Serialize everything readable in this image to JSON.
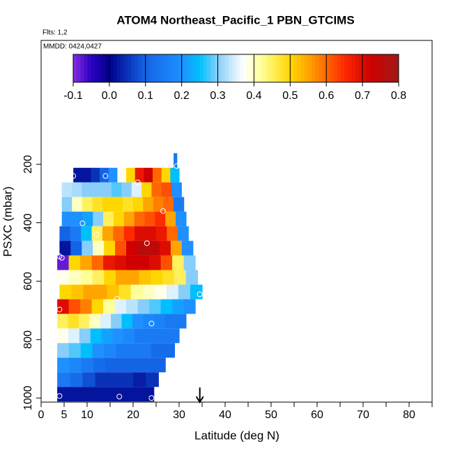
{
  "chart_data": {
    "type": "heatmap",
    "title": "ATOM4 Northeast_Pacific_1 PBN_GTCIMS",
    "flights": "Flts: 1,2",
    "dates": "MMDD: 0424,0427",
    "xlabel": "Latitude (deg N)",
    "ylabel": "PSXC (mbar)",
    "xlim": [
      0,
      85
    ],
    "xticks": [
      0,
      5,
      10,
      20,
      30,
      40,
      50,
      60,
      70,
      80
    ],
    "xminor": [
      15,
      25,
      35,
      45,
      55,
      65,
      75,
      85
    ],
    "ylim": [
      1014,
      -224
    ],
    "yticks": [
      200,
      400,
      600,
      800,
      1000
    ],
    "clim": [
      -0.1,
      0.8
    ],
    "cticks": [
      -0.1,
      {
        "value": 0,
        "label": "0.0"
      },
      0.1,
      0.2,
      0.3,
      0.4,
      0.5,
      0.6,
      0.7,
      0.8
    ],
    "colorscale": [
      [
        -0.1,
        "#8a2be2"
      ],
      [
        -0.05,
        "#2a00c0"
      ],
      [
        0,
        "#00008b"
      ],
      [
        0.1,
        "#1464e6"
      ],
      [
        0.2,
        "#1e90ff"
      ],
      [
        0.25,
        "#00bfff"
      ],
      [
        0.3,
        "#87cefa"
      ],
      [
        0.37,
        "#ffffff"
      ],
      [
        0.42,
        "#ffff99"
      ],
      [
        0.5,
        "#ffd700"
      ],
      [
        0.55,
        "#ffa500"
      ],
      [
        0.65,
        "#ff2a00"
      ],
      [
        0.72,
        "#d00000"
      ],
      [
        0.8,
        "#a01818"
      ]
    ],
    "rows": [
      {
        "pressure_range": [
          162,
          212
        ],
        "lat_range": [
          28.8,
          29.5
        ],
        "values": [
          0.15
        ]
      },
      {
        "pressure_range": [
          212,
          262
        ],
        "lat_range": [
          7,
          30
        ],
        "values": [
          0.02,
          0.02,
          0.05,
          0.1,
          0.2,
          0.38,
          0.5,
          0.68,
          0.72,
          0.6,
          0.5,
          0.25
        ]
      },
      {
        "pressure_range": [
          262,
          312
        ],
        "lat_range": [
          4.5,
          30.5
        ],
        "values": [
          0.33,
          0.32,
          0.3,
          0.3,
          0.3,
          0.28,
          0.3,
          0.35,
          0.5,
          0.6,
          0.62,
          0.2
        ]
      },
      {
        "pressure_range": [
          312,
          362
        ],
        "lat_range": [
          4.5,
          31
        ],
        "values": [
          0.3,
          0.4,
          0.45,
          0.48,
          0.5,
          0.5,
          0.48,
          0.5,
          0.55,
          0.58,
          0.6,
          0.15
        ]
      },
      {
        "pressure_range": [
          362,
          412
        ],
        "lat_range": [
          4.5,
          31.5
        ],
        "values": [
          0.2,
          0.2,
          0.22,
          0.3,
          0.45,
          0.5,
          0.55,
          0.6,
          0.62,
          0.65,
          0.55,
          0.2
        ]
      },
      {
        "pressure_range": [
          412,
          462
        ],
        "lat_range": [
          4,
          32
        ],
        "values": [
          0.1,
          0.15,
          0.25,
          0.45,
          0.55,
          0.6,
          0.65,
          0.7,
          0.7,
          0.68,
          0.6,
          0.2
        ]
      },
      {
        "pressure_range": [
          462,
          512
        ],
        "lat_range": [
          4,
          33
        ],
        "values": [
          0.02,
          0.1,
          0.3,
          0.4,
          0.5,
          0.62,
          0.72,
          0.76,
          0.75,
          0.7,
          0.55,
          0.2
        ]
      },
      {
        "pressure_range": [
          512,
          562
        ],
        "lat_range": [
          3.5,
          33.5
        ],
        "values": [
          -0.08,
          0.5,
          0.55,
          0.6,
          0.68,
          0.7,
          0.72,
          0.72,
          0.7,
          0.62,
          0.45,
          0.3
        ]
      },
      {
        "pressure_range": [
          562,
          612
        ],
        "lat_range": [
          3.5,
          34
        ],
        "values": [
          0.38,
          0.4,
          0.42,
          0.45,
          0.5,
          0.55,
          0.55,
          0.52,
          0.5,
          0.48,
          0.45,
          0.3
        ]
      },
      {
        "pressure_range": [
          612,
          662
        ],
        "lat_range": [
          4,
          35
        ],
        "values": [
          0.5,
          0.52,
          0.55,
          0.55,
          0.52,
          0.48,
          0.42,
          0.4,
          0.38,
          0.35,
          0.3,
          0.25
        ]
      },
      {
        "pressure_range": [
          662,
          712
        ],
        "lat_range": [
          3.5,
          33.5
        ],
        "values": [
          0.7,
          0.62,
          0.58,
          0.5,
          0.42,
          0.35,
          0.33,
          0.3,
          0.28,
          0.25,
          0.22,
          0.2
        ]
      },
      {
        "pressure_range": [
          712,
          762
        ],
        "lat_range": [
          3.5,
          31.5
        ],
        "values": [
          0.45,
          0.48,
          0.45,
          0.4,
          0.35,
          0.3,
          0.25,
          0.2,
          0.18,
          0.17,
          0.15,
          0.15
        ]
      },
      {
        "pressure_range": [
          762,
          812
        ],
        "lat_range": [
          3.5,
          30
        ],
        "values": [
          0.38,
          0.35,
          0.3,
          0.25,
          0.22,
          0.2,
          0.18,
          0.15,
          0.15,
          0.15,
          0.15
        ]
      },
      {
        "pressure_range": [
          812,
          862
        ],
        "lat_range": [
          3.5,
          29
        ],
        "values": [
          0.3,
          0.28,
          0.25,
          0.2,
          0.18,
          0.15,
          0.15,
          0.15,
          0.12,
          0.12
        ]
      },
      {
        "pressure_range": [
          862,
          912
        ],
        "lat_range": [
          3.5,
          27
        ],
        "values": [
          0.2,
          0.18,
          0.15,
          0.12,
          0.1,
          0.1,
          0.1,
          0.1,
          0.1
        ]
      },
      {
        "pressure_range": [
          912,
          962
        ],
        "lat_range": [
          3.5,
          25.5
        ],
        "values": [
          0.15,
          0.12,
          0.08,
          0.05,
          0.05,
          0.05,
          0.03,
          0.05
        ]
      },
      {
        "pressure_range": [
          962,
          1012
        ],
        "lat_range": [
          3.5,
          24.5
        ],
        "values": [
          0.02,
          0.02,
          0.02,
          0.02,
          0.02,
          0.02,
          0.02
        ]
      }
    ],
    "markers": {
      "x": [
        29.5,
        7,
        14,
        21,
        26.5,
        9,
        12,
        23,
        4,
        4.5,
        34.5,
        16.5,
        4,
        24,
        4,
        17,
        24
      ],
      "y": [
        206,
        240,
        240,
        262,
        360,
        402,
        440,
        470,
        515,
        520,
        645,
        660,
        697,
        745,
        993,
        995,
        1000
      ]
    },
    "arrow_x": 34.5
  }
}
